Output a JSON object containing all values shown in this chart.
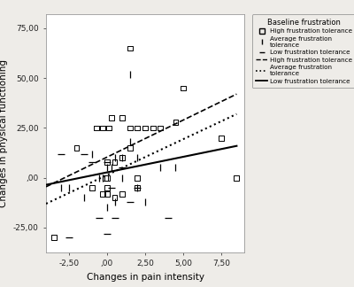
{
  "title": "",
  "xlabel": "Changes in pain intensity",
  "ylabel": "Changes in physical functioning",
  "xlim": [
    -4.0,
    9.0
  ],
  "ylim": [
    -37.5,
    82.0
  ],
  "xticks": [
    -2.5,
    0.0,
    2.5,
    5.0,
    7.5
  ],
  "yticks": [
    -25.0,
    0.0,
    25.0,
    50.0,
    75.0
  ],
  "xtick_labels": [
    "-2,50",
    ",00",
    "2,50",
    "5,00",
    "7,50"
  ],
  "ytick_labels": [
    "-25,00",
    ",00",
    "25,00",
    "50,00",
    "75,00"
  ],
  "background_color": "#eeece8",
  "plot_bg": "#ffffff",
  "legend_title": "Baseline frustration",
  "scatter_high": {
    "x": [
      -3.5,
      -2.0,
      -1.0,
      -0.7,
      -0.3,
      -0.3,
      -0.1,
      0.0,
      0.0,
      0.0,
      0.0,
      0.1,
      0.3,
      0.5,
      0.5,
      1.0,
      1.0,
      1.0,
      1.5,
      1.5,
      1.5,
      2.0,
      2.0,
      2.0,
      2.5,
      3.0,
      3.5,
      4.5,
      5.0,
      7.5,
      8.5
    ],
    "y": [
      -30.0,
      15.0,
      -5.0,
      25.0,
      25.0,
      -8.0,
      0.0,
      8.0,
      0.0,
      -5.0,
      -8.0,
      25.0,
      30.0,
      8.0,
      -10.0,
      30.0,
      10.0,
      -8.0,
      65.0,
      25.0,
      15.0,
      25.0,
      0.0,
      -5.0,
      25.0,
      25.0,
      25.0,
      28.0,
      45.0,
      20.0,
      0.0
    ],
    "marker": "s",
    "color": "black",
    "size": 18,
    "facecolor": "none"
  },
  "scatter_avg": {
    "x": [
      -3.0,
      -2.5,
      -1.5,
      -1.0,
      -0.5,
      -0.3,
      0.0,
      0.0,
      0.3,
      0.5,
      0.5,
      1.0,
      1.0,
      1.5,
      1.5,
      2.0,
      2.0,
      2.5,
      3.5,
      4.5
    ],
    "y": [
      -5.0,
      -5.0,
      -10.0,
      12.0,
      0.0,
      0.0,
      5.0,
      -15.0,
      5.0,
      10.0,
      -12.0,
      10.0,
      0.0,
      52.0,
      18.0,
      10.0,
      -5.0,
      -12.0,
      5.0,
      5.0
    ],
    "marker": "|",
    "color": "black",
    "size": 28
  },
  "scatter_low": {
    "x": [
      -3.0,
      -2.5,
      -1.5,
      -1.0,
      -0.5,
      0.0,
      0.0,
      0.3,
      0.5,
      1.0,
      1.5,
      2.0,
      4.0
    ],
    "y": [
      12.0,
      -30.0,
      12.0,
      8.0,
      -20.0,
      8.0,
      -28.0,
      -5.0,
      -20.0,
      5.0,
      -12.0,
      -5.0,
      -20.0
    ],
    "marker": "_",
    "color": "black",
    "size": 28
  },
  "line_high": {
    "x": [
      -4.0,
      8.5
    ],
    "y": [
      -4.5,
      42.0
    ],
    "style": "--",
    "color": "black",
    "linewidth": 1.2
  },
  "line_avg": {
    "x": [
      -4.0,
      8.5
    ],
    "y": [
      -13.0,
      32.0
    ],
    "style": ":",
    "color": "black",
    "linewidth": 1.5
  },
  "line_low": {
    "x": [
      -4.0,
      8.5
    ],
    "y": [
      -3.5,
      16.0
    ],
    "style": "-",
    "color": "black",
    "linewidth": 1.5
  },
  "legend_items_scatter": [
    {
      "label": "High frustration tolerance",
      "marker": "s",
      "ms": 4
    },
    {
      "label": "Average frustration\ntolerance",
      "marker": "|",
      "ms": 6
    },
    {
      "label": "Low frustration tolerance",
      "marker": "_",
      "ms": 6
    }
  ],
  "legend_items_lines": [
    {
      "label": "High frustration tolerance",
      "ls": "--"
    },
    {
      "label": "Average frustration\ntolerance",
      "ls": ":"
    },
    {
      "label": "Low frustration tolerance",
      "ls": "-"
    }
  ]
}
